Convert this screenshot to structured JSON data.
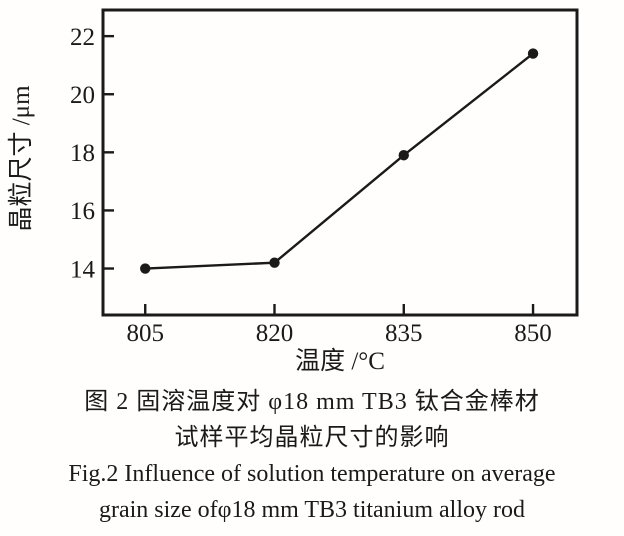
{
  "chart_data": {
    "type": "line",
    "title": "",
    "x": [
      805,
      820,
      835,
      850
    ],
    "series": [
      {
        "name": "average grain size",
        "values": [
          14.0,
          14.2,
          17.9,
          21.4
        ]
      }
    ],
    "xlabel": "温度 /°C",
    "ylabel": "晶粒尺寸 /μm",
    "x_ticks": [
      805,
      820,
      835,
      850
    ],
    "y_ticks": [
      14,
      16,
      18,
      20,
      22
    ],
    "xlim": [
      800.1,
      855.1
    ],
    "ylim": [
      12.4,
      22.9
    ],
    "grid": false,
    "legend_position": "none",
    "line_color": "#1a1a1a",
    "marker": "filled-circle",
    "frame_color": "#1a1a1a",
    "background": "#fffefd"
  },
  "caption": {
    "zh_line1": "图 2  固溶温度对 φ18 mm TB3 钛合金棒材",
    "zh_line2": "试样平均晶粒尺寸的影响",
    "en_line1": "Fig.2  Influence of solution temperature on average",
    "en_line2": "grain size ofφ18 mm TB3 titanium alloy rod"
  }
}
